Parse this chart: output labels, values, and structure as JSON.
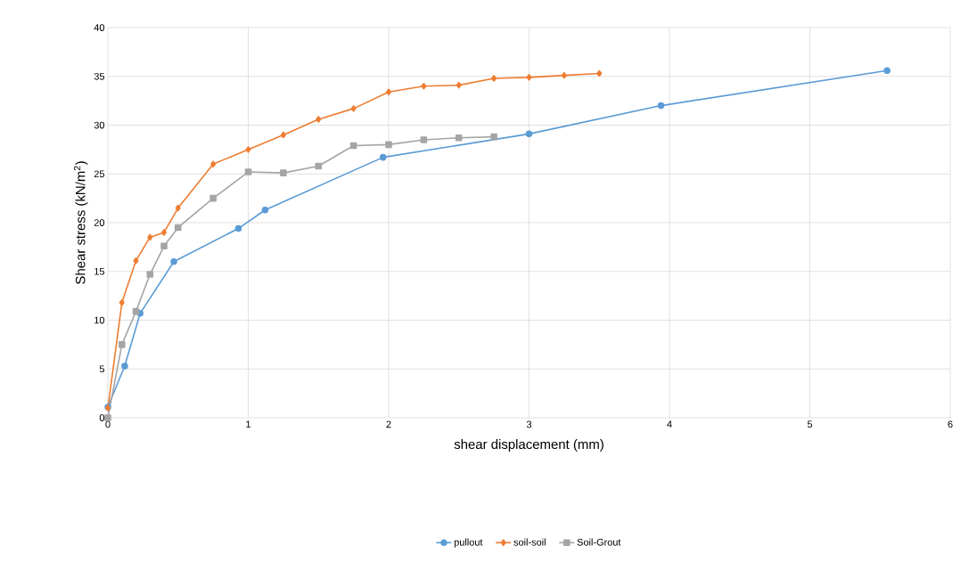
{
  "chart_data": {
    "type": "line",
    "xlabel": "shear displacement (mm)",
    "ylabel": "Shear stress (kN/m$^{2}$)",
    "xlim": [
      0,
      6
    ],
    "ylim": [
      0,
      40
    ],
    "xticks": [
      0,
      1,
      2,
      3,
      4,
      5,
      6
    ],
    "yticks": [
      0,
      5,
      10,
      15,
      20,
      25,
      30,
      35,
      40
    ],
    "grid": true,
    "legend": "bottom",
    "series": [
      {
        "name": "pullout",
        "color": "#5b9bd5",
        "marker": "circle",
        "x": [
          0,
          0.12,
          0.23,
          0.47,
          0.93,
          1.12,
          1.96,
          3.0,
          3.94,
          5.55
        ],
        "values": [
          1.1,
          5.3,
          10.7,
          16,
          19.4,
          21.3,
          26.7,
          29.1,
          32.0,
          35.6
        ]
      },
      {
        "name": "soil-soil",
        "color": "#ed7d31",
        "marker": "diamond",
        "x": [
          0,
          0.1,
          0.2,
          0.3,
          0.4,
          0.5,
          0.75,
          1,
          1.25,
          1.5,
          1.75,
          2,
          2.25,
          2.5,
          2.75,
          3,
          3.25,
          3.5
        ],
        "values": [
          1,
          11.8,
          16.1,
          18.5,
          19,
          21.5,
          26,
          27.5,
          29,
          30.6,
          31.7,
          33.4,
          34,
          34.1,
          34.8,
          34.9,
          35.1,
          35.3
        ]
      },
      {
        "name": "Soil-Grout",
        "color": "#a5a5a5",
        "marker": "square",
        "x": [
          0,
          0.1,
          0.2,
          0.3,
          0.4,
          0.5,
          0.75,
          1,
          1.25,
          1.5,
          1.75,
          2,
          2.25,
          2.5,
          2.75
        ],
        "values": [
          0,
          7.5,
          10.9,
          14.7,
          17.6,
          19.5,
          22.5,
          25.2,
          25.1,
          25.8,
          27.9,
          28,
          28.5,
          28.7,
          28.8
        ]
      }
    ]
  }
}
